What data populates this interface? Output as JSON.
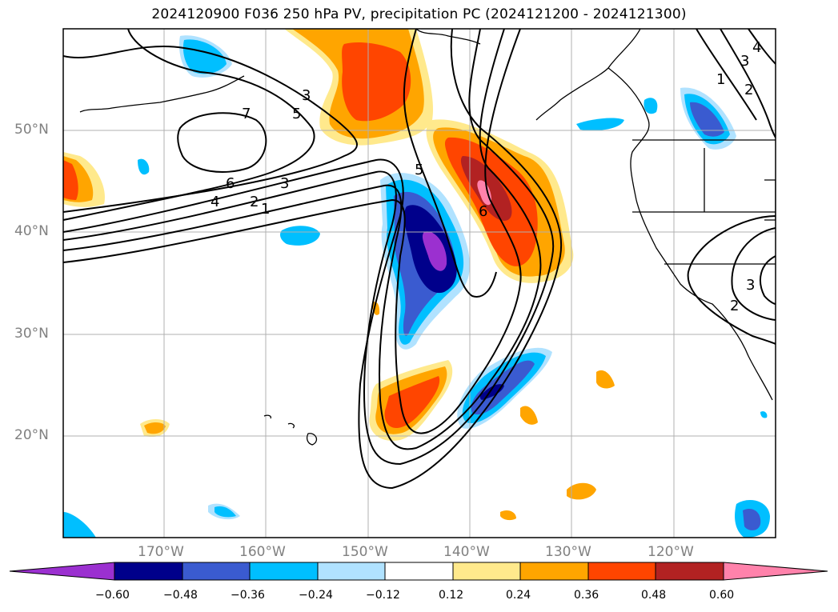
{
  "title": "2024120900 F036 250 hPa PV, precipitation PC (2024121200 - 2024121300)",
  "lat_ticks": [
    "50°N",
    "40°N",
    "30°N",
    "20°N"
  ],
  "lon_ticks": [
    "170°W",
    "160°W",
    "150°W",
    "140°W",
    "130°W",
    "120°W"
  ],
  "colorbar": {
    "ticks": [
      "−0.60",
      "−0.48",
      "−0.36",
      "−0.24",
      "−0.12",
      "0.12",
      "0.24",
      "0.36",
      "0.48",
      "0.60"
    ],
    "colors": [
      "#9b30d0",
      "#00008b",
      "#3a5bd0",
      "#00bfff",
      "#b0e2ff",
      "#ffffff",
      "#ffe98c",
      "#ffa500",
      "#ff4500",
      "#b22222",
      "#ff82ab"
    ],
    "extend": "both"
  },
  "contour_labels": [
    "7",
    "5",
    "3",
    "6",
    "3",
    "4",
    "2",
    "1",
    "5",
    "6",
    "3",
    "4",
    "1",
    "2",
    "3",
    "2"
  ]
}
